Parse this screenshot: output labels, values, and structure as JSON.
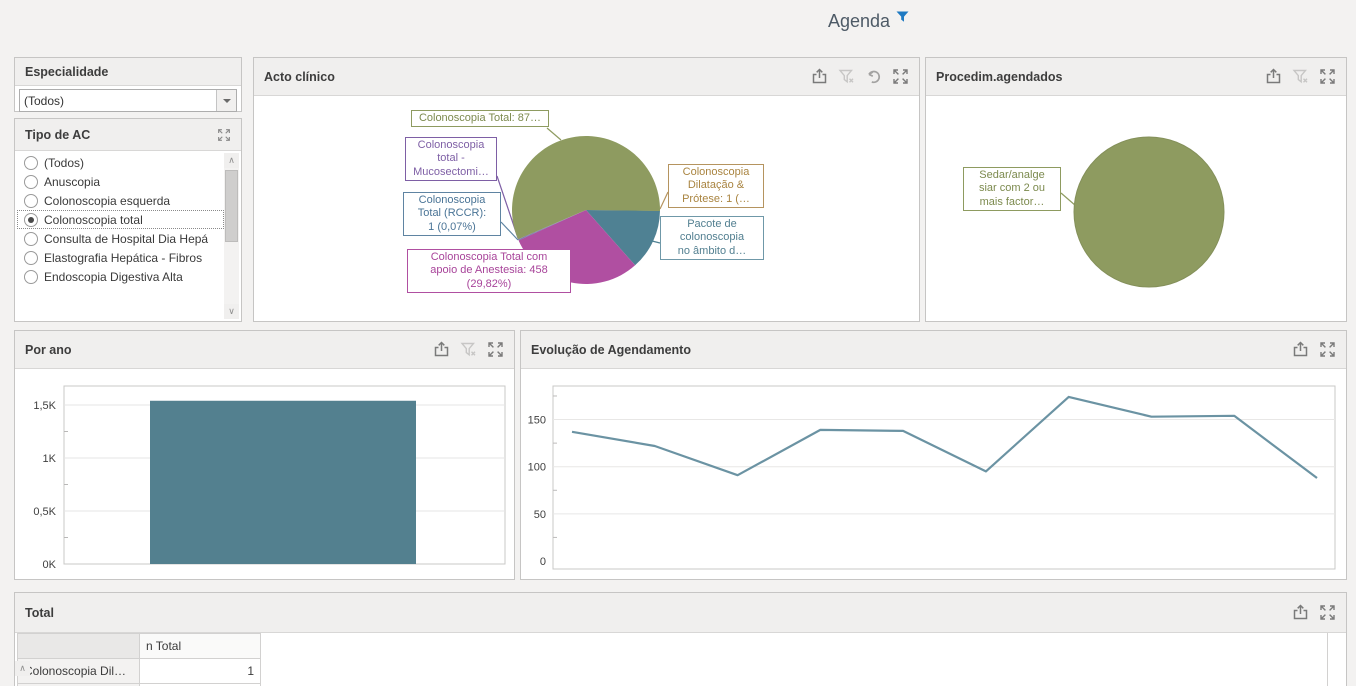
{
  "page": {
    "title": "Agenda"
  },
  "panels": {
    "especialidade": {
      "title": "Especialidade",
      "combo_value": "(Todos)"
    },
    "tipo_ac": {
      "title": "Tipo de AC",
      "items": [
        {
          "label": "(Todos)",
          "selected": false
        },
        {
          "label": "Anuscopia",
          "selected": false
        },
        {
          "label": "Colonoscopia esquerda",
          "selected": false
        },
        {
          "label": "Colonoscopia total",
          "selected": true
        },
        {
          "label": "Consulta de Hospital Dia Hepá",
          "selected": false
        },
        {
          "label": "Elastografia Hepática - Fibros",
          "selected": false
        },
        {
          "label": "Endoscopia Digestiva Alta",
          "selected": false
        }
      ]
    },
    "acto_clinico": {
      "title": "Acto clínico"
    },
    "procedim": {
      "title": "Procedim.agendados"
    },
    "por_ano": {
      "title": "Por ano"
    },
    "evolucao": {
      "title": "Evolução de Agendamento"
    },
    "total": {
      "title": "Total"
    }
  },
  "colors": {
    "olive": "#8e9b60",
    "magenta": "#b04fa1",
    "teal": "#4f8193",
    "steel": "#5f84a2",
    "purple": "#7e5fa5",
    "tan": "#b5945f",
    "line": "#6b93a3",
    "bar": "#53808f",
    "filter_blue": "#1e7ac2"
  },
  "chart_data": [
    {
      "id": "acto_clinico_pie",
      "type": "pie",
      "title": "Acto clínico",
      "slices": [
        {
          "label": "Colonoscopia Dilatação & Prótese: 1 (…",
          "value": 1,
          "percent": 0.07,
          "color": "#b5945f",
          "callout": "Colonoscopia\nDilatação &\nPrótese: 1 (…"
        },
        {
          "label": "Pacote de colonoscopia no âmbito d…",
          "percent": 13.3,
          "color": "#4f8193",
          "callout": "Pacote de\ncolonoscopia\nno âmbito d…"
        },
        {
          "label": "Colonoscopia Total com apoio de Anestesia: 458 (29,82%)",
          "value": 458,
          "percent": 29.82,
          "color": "#b04fa1",
          "callout": "Colonoscopia Total com\napoio de Anestesia: 458\n(29,82%)"
        },
        {
          "label": "Colonoscopia Total (RCCR): 1 (0,07%)",
          "value": 1,
          "percent": 0.07,
          "color": "#5f84a2",
          "callout": "Colonoscopia\nTotal (RCCR):\n1 (0,07%)"
        },
        {
          "label": "Colonoscopia total - Mucosectomi…",
          "percent": 0.07,
          "color": "#7e5fa5",
          "callout": "Colonoscopia\ntotal -\nMucosectomi…"
        },
        {
          "label": "Colonoscopia Total: 87…",
          "percent": 56.67,
          "color": "#8e9b60",
          "callout": "Colonoscopia Total: 87…"
        }
      ]
    },
    {
      "id": "procedim_pie",
      "type": "pie",
      "title": "Procedim.agendados",
      "slices": [
        {
          "label": "Sedar/analgesiar com 2 ou mais factor…",
          "percent": 100,
          "color": "#8e9b60",
          "callout": "Sedar/analge\nsiar com 2 ou\nmais factor…"
        }
      ]
    },
    {
      "id": "por_ano_bar",
      "type": "bar",
      "title": "Por ano",
      "categories": [
        ""
      ],
      "values": [
        1540
      ],
      "yticks": [
        {
          "label": "0K",
          "v": 0
        },
        {
          "label": "0,5K",
          "v": 500
        },
        {
          "label": "1K",
          "v": 1000
        },
        {
          "label": "1,5K",
          "v": 1500
        }
      ],
      "ylim": [
        0,
        1670
      ],
      "grid": true
    },
    {
      "id": "evolucao_line",
      "type": "line",
      "title": "Evolução de Agendamento",
      "x": [
        1,
        2,
        3,
        4,
        5,
        6,
        7,
        8,
        9,
        10
      ],
      "values": [
        137,
        122,
        91,
        139,
        138,
        95,
        174,
        153,
        154,
        88
      ],
      "yticks": [
        {
          "label": "0",
          "v": 0
        },
        {
          "label": "50",
          "v": 50
        },
        {
          "label": "100",
          "v": 100
        },
        {
          "label": "150",
          "v": 150
        }
      ],
      "ylim": [
        0,
        188
      ],
      "grid": true
    },
    {
      "id": "total_table",
      "type": "table",
      "title": "Total",
      "columns": [
        "",
        "n Total"
      ],
      "rows": [
        [
          "Colonoscopia Dil…",
          "1"
        ]
      ]
    }
  ]
}
